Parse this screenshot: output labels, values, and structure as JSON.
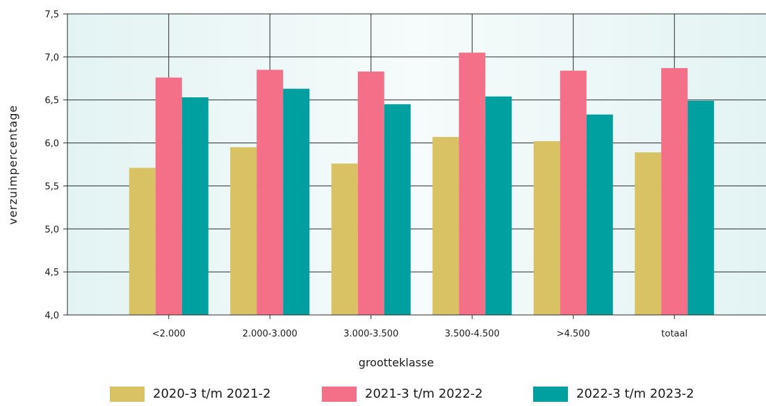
{
  "chart_data": {
    "type": "bar",
    "title": "",
    "xlabel": "grootteklasse",
    "ylabel": "verzuimpercentage",
    "ylim": [
      4.0,
      7.5
    ],
    "yticks": [
      "4,0",
      "4,5",
      "5,0",
      "5,5",
      "6,0",
      "6,5",
      "7,0",
      "7,5"
    ],
    "categories": [
      "<2.000",
      "2.000-3.000",
      "3.000-3.500",
      "3.500-4.500",
      ">4.500",
      "totaal"
    ],
    "series": [
      {
        "name": "2020-3 t/m 2021-2",
        "color": "#d9c263",
        "values": [
          5.71,
          5.95,
          5.76,
          6.07,
          6.02,
          5.89
        ]
      },
      {
        "name": "2021-3 t/m 2022-2",
        "color": "#f46f88",
        "values": [
          6.76,
          6.85,
          6.83,
          7.05,
          6.84,
          6.87
        ]
      },
      {
        "name": "2022-3 t/m 2023-2",
        "color": "#00a0a0",
        "values": [
          6.53,
          6.63,
          6.45,
          6.54,
          6.33,
          6.49
        ]
      }
    ],
    "grid": true,
    "legend_position": "bottom",
    "plot_background": "#e8f5f5"
  }
}
